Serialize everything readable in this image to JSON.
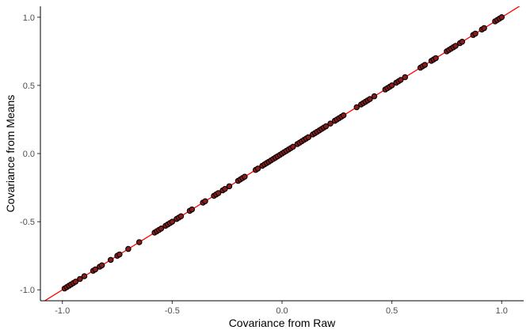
{
  "chart_data": {
    "type": "scatter",
    "title": "",
    "xlabel": "Covariance from Raw",
    "ylabel": "Covariance from Means",
    "xlim": [
      -1.1,
      1.1
    ],
    "ylim": [
      -1.08,
      1.08
    ],
    "x_ticks": [
      -1.0,
      -0.5,
      0.0,
      0.5,
      1.0
    ],
    "y_ticks": [
      -1.0,
      -0.5,
      0.0,
      0.5,
      1.0
    ],
    "x_tick_labels": [
      "-1.0",
      "-0.5",
      "0.0",
      "0.5",
      "1.0"
    ],
    "y_tick_labels": [
      "-1.0",
      "-0.5",
      "0.0",
      "0.5",
      "1.0"
    ],
    "grid": false,
    "reference_line": {
      "slope": 1,
      "intercept": 0,
      "color": "#ff0000"
    },
    "point_fill": "#8b1a1a",
    "point_stroke": "#000000",
    "series": [
      {
        "x": [
          -0.99,
          -0.98,
          -0.97,
          -0.96,
          -0.95,
          -0.94,
          -0.92,
          -0.9,
          -0.86,
          -0.85,
          -0.83,
          -0.82,
          -0.78,
          -0.75,
          -0.74,
          -0.7,
          -0.65,
          -0.58,
          -0.57,
          -0.56,
          -0.55,
          -0.53,
          -0.52,
          -0.51,
          -0.5,
          -0.48,
          -0.47,
          -0.46,
          -0.42,
          -0.41,
          -0.36,
          -0.35,
          -0.31,
          -0.3,
          -0.29,
          -0.27,
          -0.26,
          -0.24,
          -0.2,
          -0.19,
          -0.18,
          -0.17,
          -0.12,
          -0.11,
          -0.09,
          -0.08,
          -0.07,
          -0.06,
          -0.05,
          -0.04,
          -0.03,
          -0.02,
          -0.01,
          0.0,
          0.01,
          0.02,
          0.03,
          0.04,
          0.05,
          0.07,
          0.08,
          0.09,
          0.1,
          0.11,
          0.12,
          0.14,
          0.15,
          0.16,
          0.17,
          0.18,
          0.19,
          0.2,
          0.22,
          0.24,
          0.25,
          0.26,
          0.27,
          0.28,
          0.34,
          0.36,
          0.37,
          0.38,
          0.39,
          0.4,
          0.42,
          0.47,
          0.48,
          0.49,
          0.5,
          0.52,
          0.53,
          0.54,
          0.56,
          0.63,
          0.64,
          0.65,
          0.68,
          0.69,
          0.7,
          0.75,
          0.76,
          0.77,
          0.78,
          0.79,
          0.81,
          0.82,
          0.87,
          0.88,
          0.91,
          0.92,
          0.97,
          0.98,
          0.99,
          1.0
        ],
        "y": [
          -0.99,
          -0.98,
          -0.97,
          -0.96,
          -0.95,
          -0.94,
          -0.92,
          -0.9,
          -0.86,
          -0.85,
          -0.83,
          -0.82,
          -0.78,
          -0.75,
          -0.74,
          -0.7,
          -0.65,
          -0.58,
          -0.57,
          -0.56,
          -0.55,
          -0.53,
          -0.52,
          -0.51,
          -0.5,
          -0.48,
          -0.47,
          -0.46,
          -0.42,
          -0.41,
          -0.36,
          -0.35,
          -0.31,
          -0.3,
          -0.29,
          -0.27,
          -0.26,
          -0.24,
          -0.2,
          -0.19,
          -0.18,
          -0.17,
          -0.12,
          -0.11,
          -0.09,
          -0.08,
          -0.07,
          -0.06,
          -0.05,
          -0.04,
          -0.03,
          -0.02,
          -0.01,
          0.0,
          0.01,
          0.02,
          0.03,
          0.04,
          0.05,
          0.07,
          0.08,
          0.09,
          0.1,
          0.11,
          0.12,
          0.14,
          0.15,
          0.16,
          0.17,
          0.18,
          0.19,
          0.2,
          0.22,
          0.24,
          0.25,
          0.26,
          0.27,
          0.28,
          0.34,
          0.36,
          0.37,
          0.38,
          0.39,
          0.4,
          0.42,
          0.47,
          0.48,
          0.49,
          0.5,
          0.52,
          0.53,
          0.54,
          0.56,
          0.63,
          0.64,
          0.65,
          0.68,
          0.69,
          0.7,
          0.75,
          0.76,
          0.77,
          0.78,
          0.79,
          0.81,
          0.82,
          0.87,
          0.88,
          0.91,
          0.92,
          0.97,
          0.98,
          0.99,
          1.0
        ]
      }
    ]
  }
}
